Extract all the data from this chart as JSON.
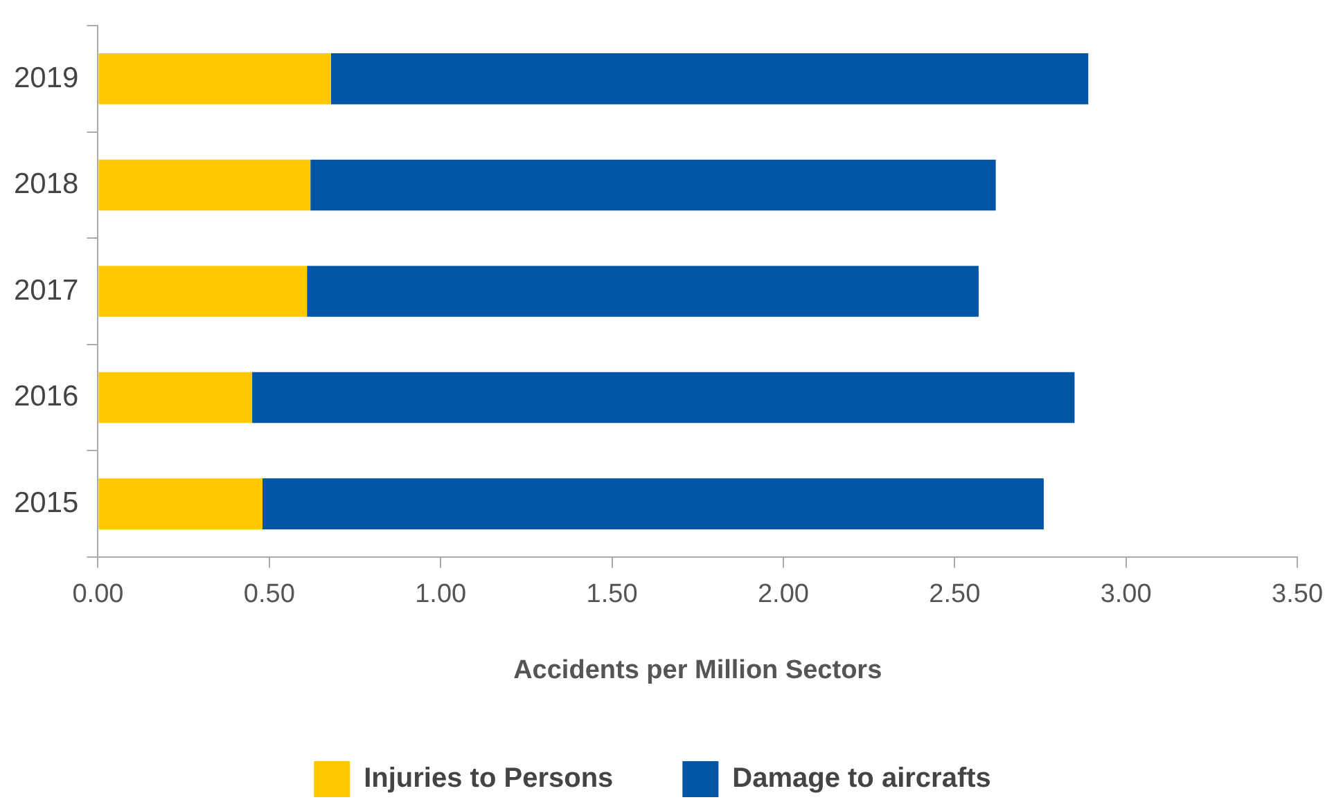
{
  "chart_data": {
    "type": "bar",
    "orientation": "horizontal",
    "stacked": true,
    "xlabel": "Accidents per Million Sectors",
    "categories": [
      "2019",
      "2018",
      "2017",
      "2016",
      "2015"
    ],
    "series": [
      {
        "name": "Injuries to Persons",
        "color": "#ffc800",
        "values": [
          0.68,
          0.62,
          0.61,
          0.45,
          0.48
        ]
      },
      {
        "name": "Damage to aircrafts",
        "color": "#0055a5",
        "values": [
          2.21,
          2.0,
          1.96,
          2.4,
          2.28
        ]
      }
    ],
    "xlim": [
      0,
      3.5
    ],
    "xticks": [
      {
        "value": 0,
        "label": "0.00"
      },
      {
        "value": 0.5,
        "label": "0.50"
      },
      {
        "value": 1,
        "label": "1.00"
      },
      {
        "value": 1.5,
        "label": "1.50"
      },
      {
        "value": 2,
        "label": "2.00"
      },
      {
        "value": 2.5,
        "label": "2.50"
      },
      {
        "value": 3,
        "label": "3.00"
      },
      {
        "value": 3.5,
        "label": "3.50"
      }
    ],
    "grid": false,
    "legend": "bottom"
  }
}
